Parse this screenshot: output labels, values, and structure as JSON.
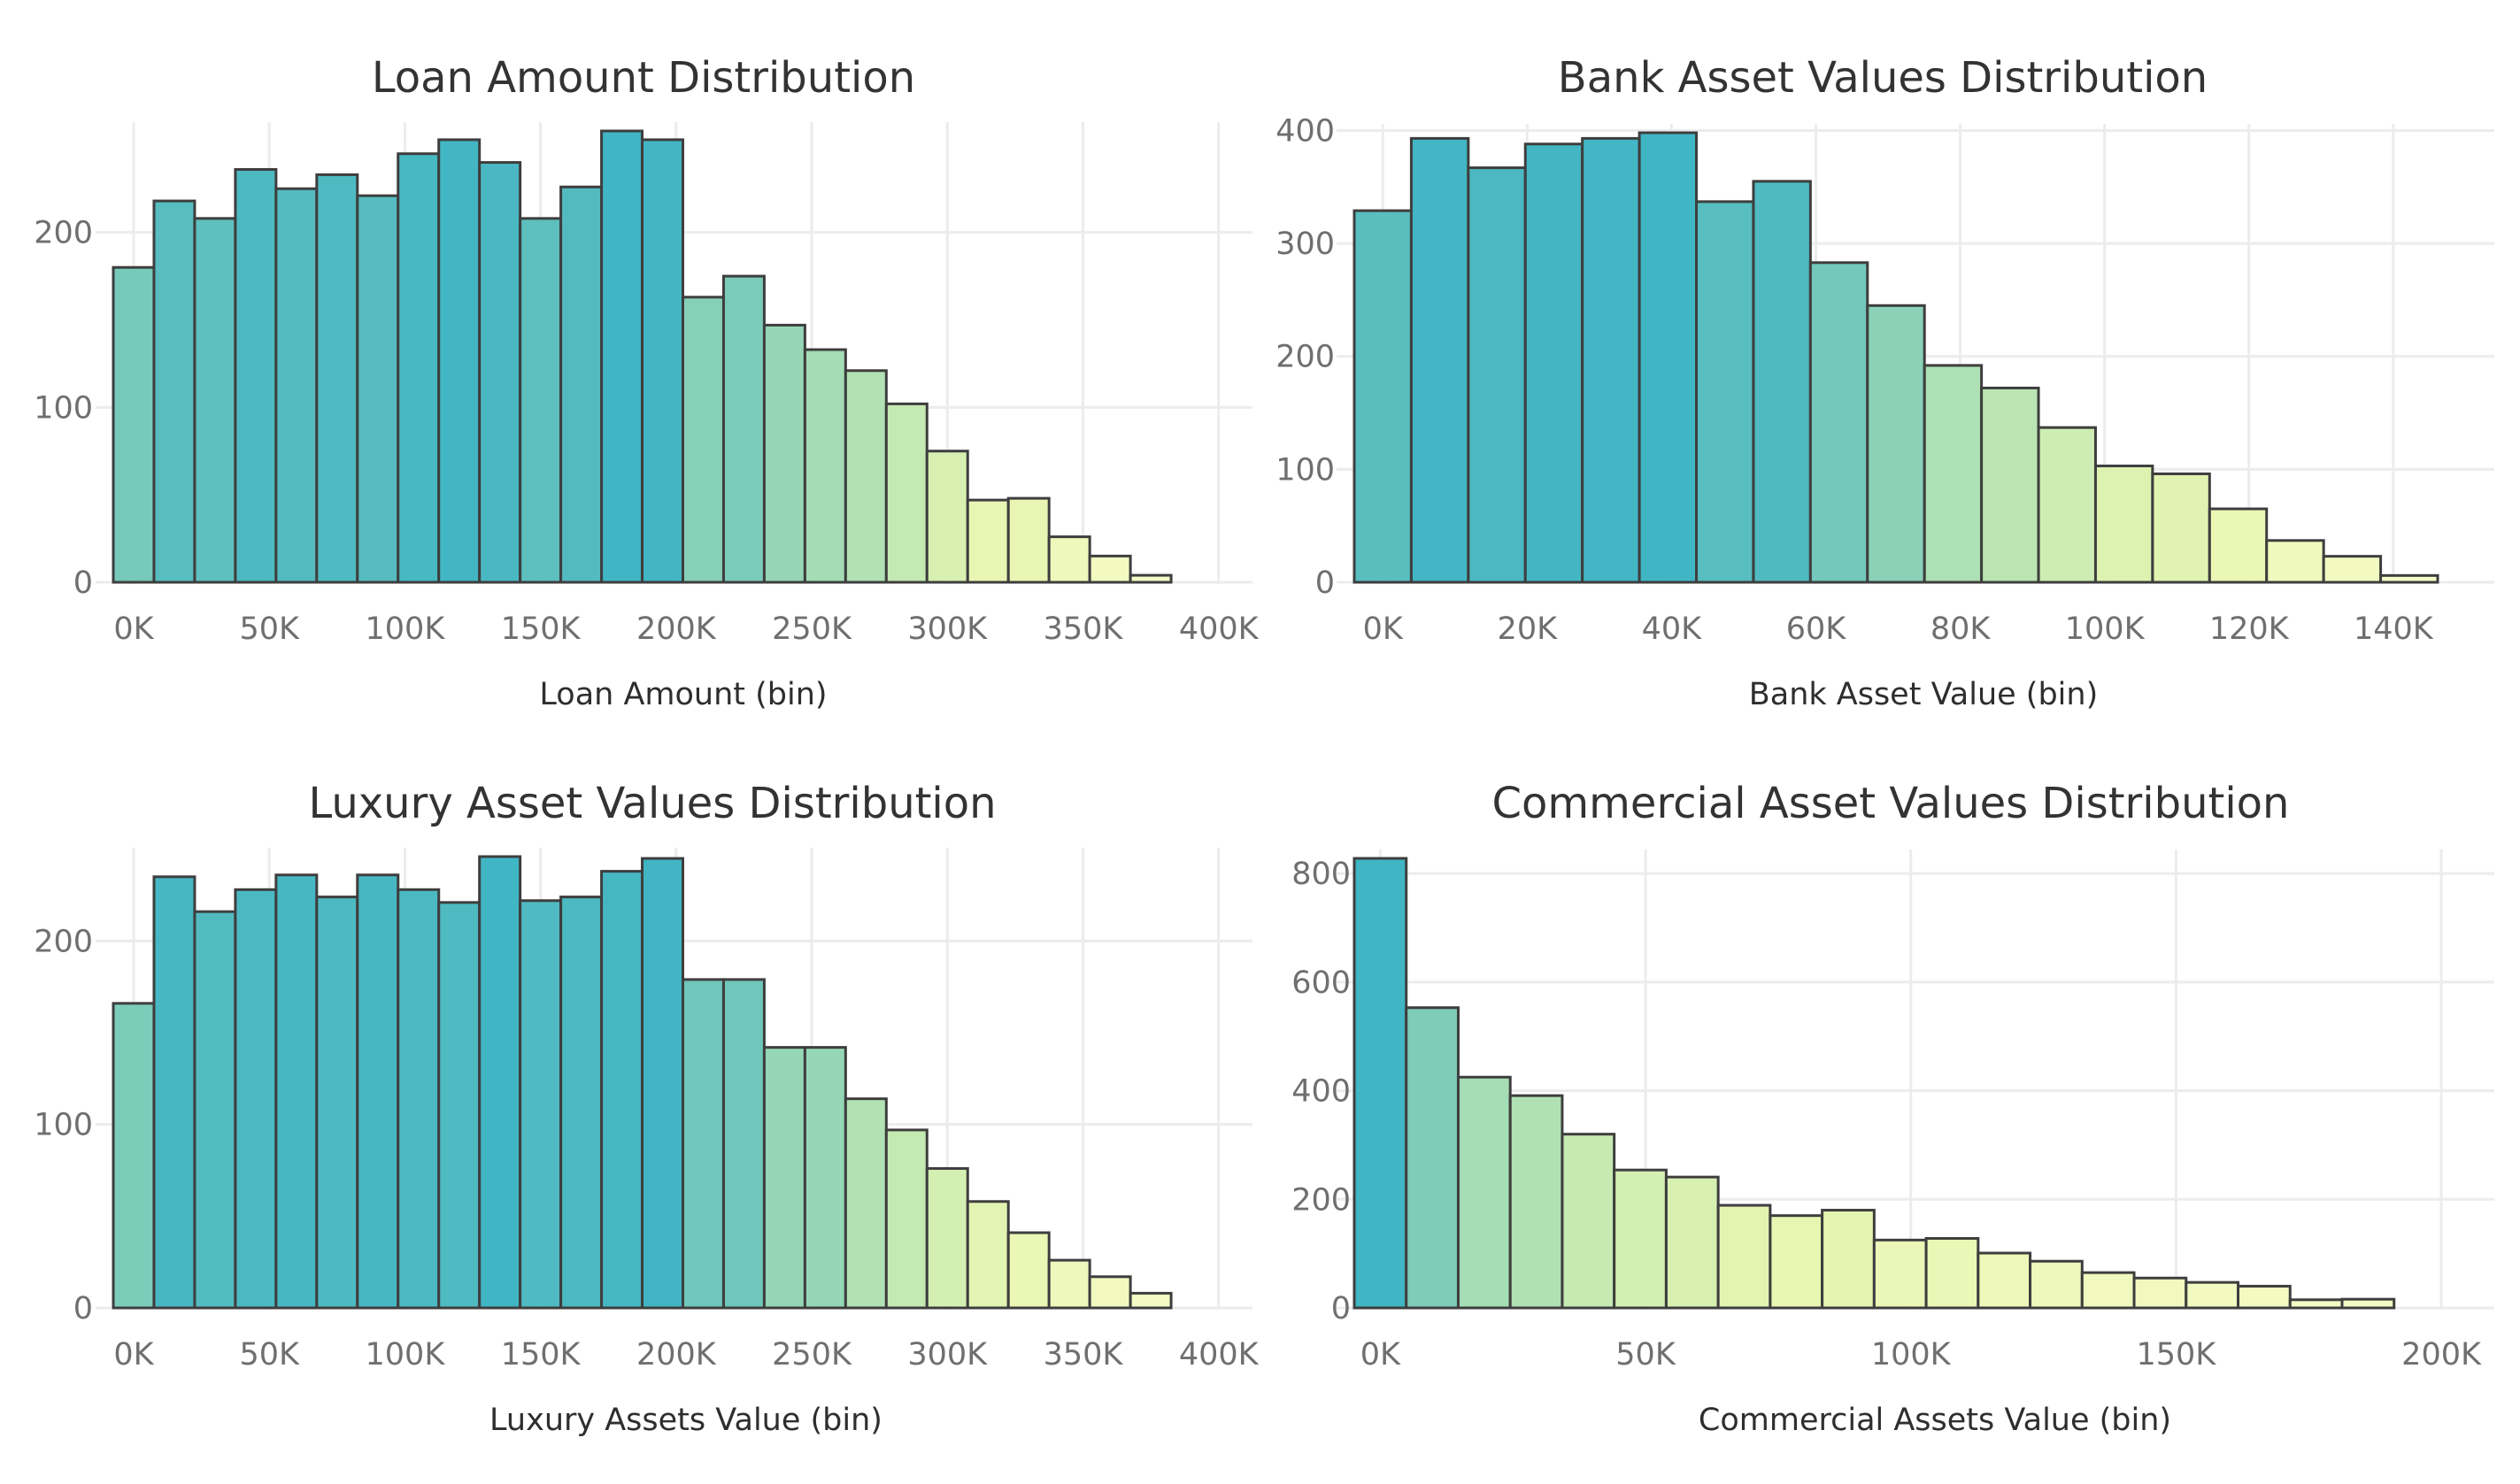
{
  "chart_data": [
    {
      "type": "bar",
      "title": "Loan Amount Distribution",
      "xlabel": "Loan Amount (bin)",
      "ylabel": "",
      "bin_width": 15000,
      "bin_start": -7500,
      "values": [
        180,
        218,
        208,
        236,
        225,
        233,
        221,
        245,
        253,
        240,
        208,
        226,
        258,
        253,
        163,
        175,
        147,
        133,
        121,
        102,
        75,
        47,
        48,
        26,
        15,
        4
      ],
      "xlim": [
        -7500,
        412500
      ],
      "ylim": [
        0,
        258
      ],
      "x_ticks": [
        0,
        50000,
        100000,
        150000,
        200000,
        250000,
        300000,
        350000,
        400000
      ],
      "x_tick_labels": [
        "0K",
        "50K",
        "100K",
        "150K",
        "200K",
        "250K",
        "300K",
        "350K",
        "400K"
      ],
      "y_ticks": [
        0,
        100,
        200
      ],
      "y_tick_labels": [
        "0",
        "100",
        "200"
      ],
      "grid": true,
      "legend": "none"
    },
    {
      "type": "bar",
      "title": "Bank Asset Values Distribution",
      "xlabel": "Bank Asset Value (bin)",
      "ylabel": "",
      "bin_width": 7900,
      "bin_start": -3950,
      "values": [
        329,
        393,
        367,
        388,
        393,
        398,
        337,
        355,
        283,
        245,
        192,
        172,
        137,
        103,
        96,
        65,
        37,
        23,
        6
      ],
      "xlim": [
        -3950,
        154000
      ],
      "ylim": [
        0,
        398
      ],
      "x_ticks": [
        0,
        20000,
        40000,
        60000,
        80000,
        100000,
        120000,
        140000
      ],
      "x_tick_labels": [
        "0K",
        "20K",
        "40K",
        "60K",
        "80K",
        "100K",
        "120K",
        "140K"
      ],
      "y_ticks": [
        0,
        100,
        200,
        300,
        400
      ],
      "y_tick_labels": [
        "0",
        "100",
        "200",
        "300",
        "400"
      ],
      "grid": true,
      "legend": "none"
    },
    {
      "type": "bar",
      "title": "Luxury Asset Values Distribution",
      "xlabel": "Luxury Assets Value (bin)",
      "ylabel": "",
      "bin_width": 15000,
      "bin_start": -7500,
      "values": [
        166,
        235,
        216,
        228,
        236,
        224,
        236,
        228,
        221,
        246,
        222,
        224,
        238,
        245,
        179,
        179,
        142,
        142,
        114,
        97,
        76,
        58,
        41,
        26,
        17,
        8
      ],
      "xlim": [
        -7500,
        412500
      ],
      "ylim": [
        0,
        246
      ],
      "x_ticks": [
        0,
        50000,
        100000,
        150000,
        200000,
        250000,
        300000,
        350000,
        400000
      ],
      "x_tick_labels": [
        "0K",
        "50K",
        "100K",
        "150K",
        "200K",
        "250K",
        "300K",
        "350K",
        "400K"
      ],
      "y_ticks": [
        0,
        100,
        200
      ],
      "y_tick_labels": [
        "0",
        "100",
        "200"
      ],
      "grid": true,
      "legend": "none"
    },
    {
      "type": "bar",
      "title": "Commercial Asset Values Distribution",
      "xlabel": "Commercial Assets Value (bin)",
      "ylabel": "",
      "bin_width": 9800,
      "bin_start": -4900,
      "values": [
        828,
        553,
        425,
        391,
        320,
        254,
        241,
        189,
        170,
        180,
        125,
        128,
        101,
        86,
        65,
        55,
        47,
        40,
        15,
        16
      ],
      "xlim": [
        -4900,
        210000
      ],
      "ylim": [
        0,
        828
      ],
      "x_ticks": [
        0,
        50000,
        100000,
        150000,
        200000
      ],
      "x_tick_labels": [
        "0K",
        "50K",
        "100K",
        "150K",
        "200K"
      ],
      "y_ticks": [
        0,
        200,
        400,
        600,
        800
      ],
      "y_tick_labels": [
        "0",
        "200",
        "400",
        "600",
        "800"
      ],
      "grid": true,
      "legend": "none"
    }
  ]
}
